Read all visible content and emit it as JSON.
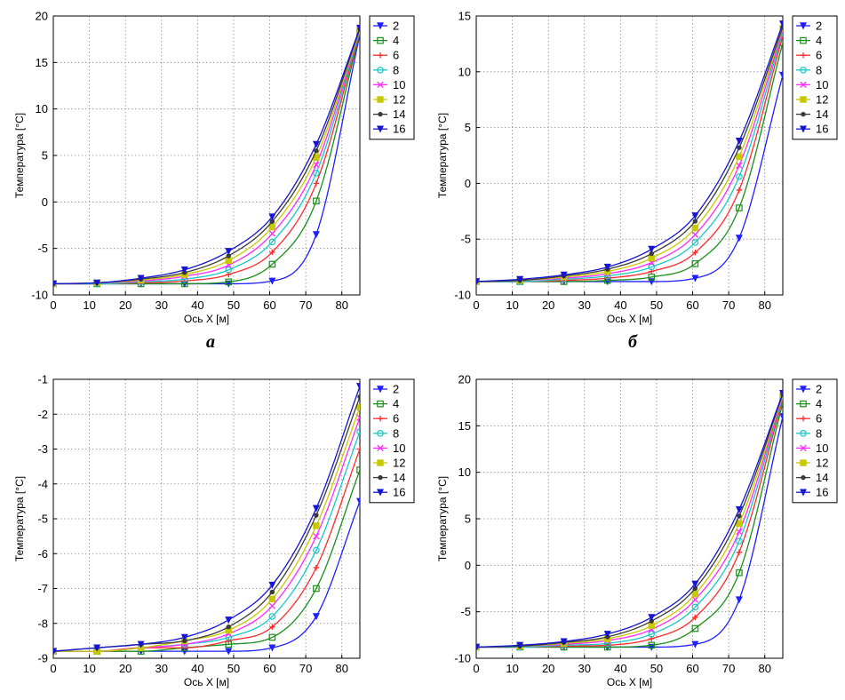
{
  "figure": {
    "panel_labels": [
      "а",
      "б"
    ]
  },
  "colors": {
    "2": "#1f1fff",
    "4": "#1a8f1a",
    "6": "#ff2a2a",
    "8": "#18c8c8",
    "10": "#ff2aff",
    "12": "#c8c800",
    "14": "#3a3a3a",
    "16": "#1414d2"
  },
  "chart_data": [
    {
      "type": "line",
      "xlabel": "Ось X [м]",
      "ylabel": "Температура [°C]",
      "xlim": [
        0,
        85
      ],
      "ylim": [
        -10,
        20
      ],
      "xticks": [
        "0",
        "10",
        "20",
        "30",
        "40",
        "50",
        "60",
        "70",
        "80"
      ],
      "yticks": [
        "-10",
        "-5",
        "0",
        "5",
        "10",
        "15",
        "20"
      ],
      "grid": true,
      "legend_position": "outside-right",
      "x": [
        0,
        12.1,
        24.3,
        36.4,
        48.6,
        60.7,
        72.9,
        85
      ],
      "series": [
        {
          "name": "2",
          "marker": "triangle-down",
          "values": [
            -8.8,
            -8.8,
            -8.8,
            -8.8,
            -8.8,
            -8.5,
            -3.5,
            18.0
          ]
        },
        {
          "name": "4",
          "marker": "square",
          "values": [
            -8.8,
            -8.8,
            -8.8,
            -8.8,
            -8.6,
            -6.7,
            0.1,
            18.2
          ]
        },
        {
          "name": "6",
          "marker": "plus",
          "values": [
            -8.8,
            -8.8,
            -8.7,
            -8.5,
            -7.8,
            -5.4,
            2.0,
            18.3
          ]
        },
        {
          "name": "8",
          "marker": "circle",
          "values": [
            -8.8,
            -8.8,
            -8.6,
            -8.3,
            -7.3,
            -4.3,
            3.1,
            18.4
          ]
        },
        {
          "name": "10",
          "marker": "x",
          "values": [
            -8.8,
            -8.7,
            -8.5,
            -8.0,
            -6.8,
            -3.4,
            4.0,
            18.5
          ]
        },
        {
          "name": "12",
          "marker": "square-filled",
          "values": [
            -8.8,
            -8.7,
            -8.4,
            -7.8,
            -6.3,
            -2.7,
            4.8,
            18.5
          ]
        },
        {
          "name": "14",
          "marker": "dot",
          "values": [
            -8.8,
            -8.7,
            -8.3,
            -7.6,
            -5.8,
            -2.1,
            5.5,
            18.6
          ]
        },
        {
          "name": "16",
          "marker": "triangle-down",
          "values": [
            -8.8,
            -8.7,
            -8.2,
            -7.3,
            -5.3,
            -1.6,
            6.2,
            18.7
          ]
        }
      ]
    },
    {
      "type": "line",
      "xlabel": "Ось X [м]",
      "ylabel": "Температура [°C]",
      "xlim": [
        0,
        85
      ],
      "ylim": [
        -10,
        15
      ],
      "xticks": [
        "0",
        "10",
        "20",
        "30",
        "40",
        "50",
        "60",
        "70",
        "80"
      ],
      "yticks": [
        "-10",
        "-5",
        "0",
        "5",
        "10",
        "15"
      ],
      "grid": true,
      "legend_position": "outside-right",
      "x": [
        0,
        12.1,
        24.3,
        36.4,
        48.6,
        60.7,
        72.9,
        85
      ],
      "series": [
        {
          "name": "2",
          "marker": "triangle-down",
          "values": [
            -8.8,
            -8.8,
            -8.8,
            -8.8,
            -8.8,
            -8.5,
            -4.9,
            9.7
          ]
        },
        {
          "name": "4",
          "marker": "square",
          "values": [
            -8.8,
            -8.8,
            -8.8,
            -8.7,
            -8.4,
            -7.2,
            -2.2,
            12.6
          ]
        },
        {
          "name": "6",
          "marker": "plus",
          "values": [
            -8.8,
            -8.8,
            -8.7,
            -8.5,
            -7.9,
            -6.2,
            -0.6,
            13.2
          ]
        },
        {
          "name": "8",
          "marker": "circle",
          "values": [
            -8.8,
            -8.8,
            -8.6,
            -8.3,
            -7.5,
            -5.3,
            0.6,
            13.5
          ]
        },
        {
          "name": "10",
          "marker": "x",
          "values": [
            -8.8,
            -8.7,
            -8.5,
            -8.1,
            -7.1,
            -4.6,
            1.6,
            13.7
          ]
        },
        {
          "name": "12",
          "marker": "square-filled",
          "values": [
            -8.8,
            -8.7,
            -8.4,
            -7.9,
            -6.7,
            -4.0,
            2.4,
            13.9
          ]
        },
        {
          "name": "14",
          "marker": "dot",
          "values": [
            -8.8,
            -8.7,
            -8.3,
            -7.7,
            -6.3,
            -3.4,
            3.2,
            14.0
          ]
        },
        {
          "name": "16",
          "marker": "triangle-down",
          "values": [
            -8.8,
            -8.6,
            -8.2,
            -7.5,
            -5.9,
            -2.9,
            3.8,
            14.3
          ]
        }
      ]
    },
    {
      "type": "line",
      "xlabel": "Ось X [м]",
      "ylabel": "Температура [°C]",
      "xlim": [
        0,
        85
      ],
      "ylim": [
        -9,
        -1
      ],
      "xticks": [
        "0",
        "10",
        "20",
        "30",
        "40",
        "50",
        "60",
        "70",
        "80"
      ],
      "yticks": [
        "-9",
        "-8",
        "-7",
        "-6",
        "-5",
        "-4",
        "-3",
        "-2",
        "-1"
      ],
      "grid": true,
      "legend_position": "outside-right",
      "x": [
        0,
        12.1,
        24.3,
        36.4,
        48.6,
        60.7,
        72.9,
        85
      ],
      "series": [
        {
          "name": "2",
          "marker": "triangle-down",
          "values": [
            -8.8,
            -8.8,
            -8.8,
            -8.8,
            -8.8,
            -8.7,
            -7.8,
            -4.5
          ]
        },
        {
          "name": "4",
          "marker": "square",
          "values": [
            -8.8,
            -8.8,
            -8.8,
            -8.7,
            -8.6,
            -8.4,
            -7.0,
            -3.6
          ]
        },
        {
          "name": "6",
          "marker": "plus",
          "values": [
            -8.8,
            -8.8,
            -8.7,
            -8.7,
            -8.5,
            -8.1,
            -6.4,
            -3.0
          ]
        },
        {
          "name": "8",
          "marker": "circle",
          "values": [
            -8.8,
            -8.8,
            -8.7,
            -8.6,
            -8.4,
            -7.8,
            -5.9,
            -2.5
          ]
        },
        {
          "name": "10",
          "marker": "x",
          "values": [
            -8.8,
            -8.8,
            -8.7,
            -8.6,
            -8.3,
            -7.5,
            -5.5,
            -2.1
          ]
        },
        {
          "name": "12",
          "marker": "square-filled",
          "values": [
            -8.8,
            -8.8,
            -8.7,
            -8.5,
            -8.2,
            -7.3,
            -5.2,
            -1.8
          ]
        },
        {
          "name": "14",
          "marker": "dot",
          "values": [
            -8.8,
            -8.7,
            -8.6,
            -8.5,
            -8.1,
            -7.1,
            -4.9,
            -1.5
          ]
        },
        {
          "name": "16",
          "marker": "triangle-down",
          "values": [
            -8.8,
            -8.7,
            -8.6,
            -8.4,
            -7.9,
            -6.9,
            -4.7,
            -1.2
          ]
        }
      ]
    },
    {
      "type": "line",
      "xlabel": "Ось X [м]",
      "ylabel": "Температура [°C]",
      "xlim": [
        0,
        85
      ],
      "ylim": [
        -10,
        20
      ],
      "xticks": [
        "0",
        "10",
        "20",
        "30",
        "40",
        "50",
        "60",
        "70",
        "80"
      ],
      "yticks": [
        "-10",
        "-5",
        "0",
        "5",
        "10",
        "15",
        "20"
      ],
      "grid": true,
      "legend_position": "outside-right",
      "x": [
        0,
        12.1,
        24.3,
        36.4,
        48.6,
        60.7,
        72.9,
        85
      ],
      "series": [
        {
          "name": "2",
          "marker": "triangle-down",
          "values": [
            -8.8,
            -8.8,
            -8.8,
            -8.8,
            -8.8,
            -8.5,
            -3.7,
            16.0
          ]
        },
        {
          "name": "4",
          "marker": "square",
          "values": [
            -8.8,
            -8.8,
            -8.8,
            -8.8,
            -8.6,
            -6.8,
            -0.8,
            17.5
          ]
        },
        {
          "name": "6",
          "marker": "plus",
          "values": [
            -8.8,
            -8.8,
            -8.7,
            -8.6,
            -7.9,
            -5.6,
            1.4,
            17.9
          ]
        },
        {
          "name": "8",
          "marker": "circle",
          "values": [
            -8.8,
            -8.8,
            -8.6,
            -8.4,
            -7.4,
            -4.5,
            2.6,
            18.1
          ]
        },
        {
          "name": "10",
          "marker": "x",
          "values": [
            -8.8,
            -8.7,
            -8.5,
            -8.1,
            -6.9,
            -3.7,
            3.6,
            18.2
          ]
        },
        {
          "name": "12",
          "marker": "square-filled",
          "values": [
            -8.8,
            -8.7,
            -8.4,
            -7.9,
            -6.5,
            -3.1,
            4.5,
            18.3
          ]
        },
        {
          "name": "14",
          "marker": "dot",
          "values": [
            -8.8,
            -8.7,
            -8.3,
            -7.7,
            -6.0,
            -2.5,
            5.3,
            18.4
          ]
        },
        {
          "name": "16",
          "marker": "triangle-down",
          "values": [
            -8.8,
            -8.6,
            -8.2,
            -7.4,
            -5.6,
            -2.0,
            6.0,
            18.5
          ]
        }
      ]
    }
  ]
}
